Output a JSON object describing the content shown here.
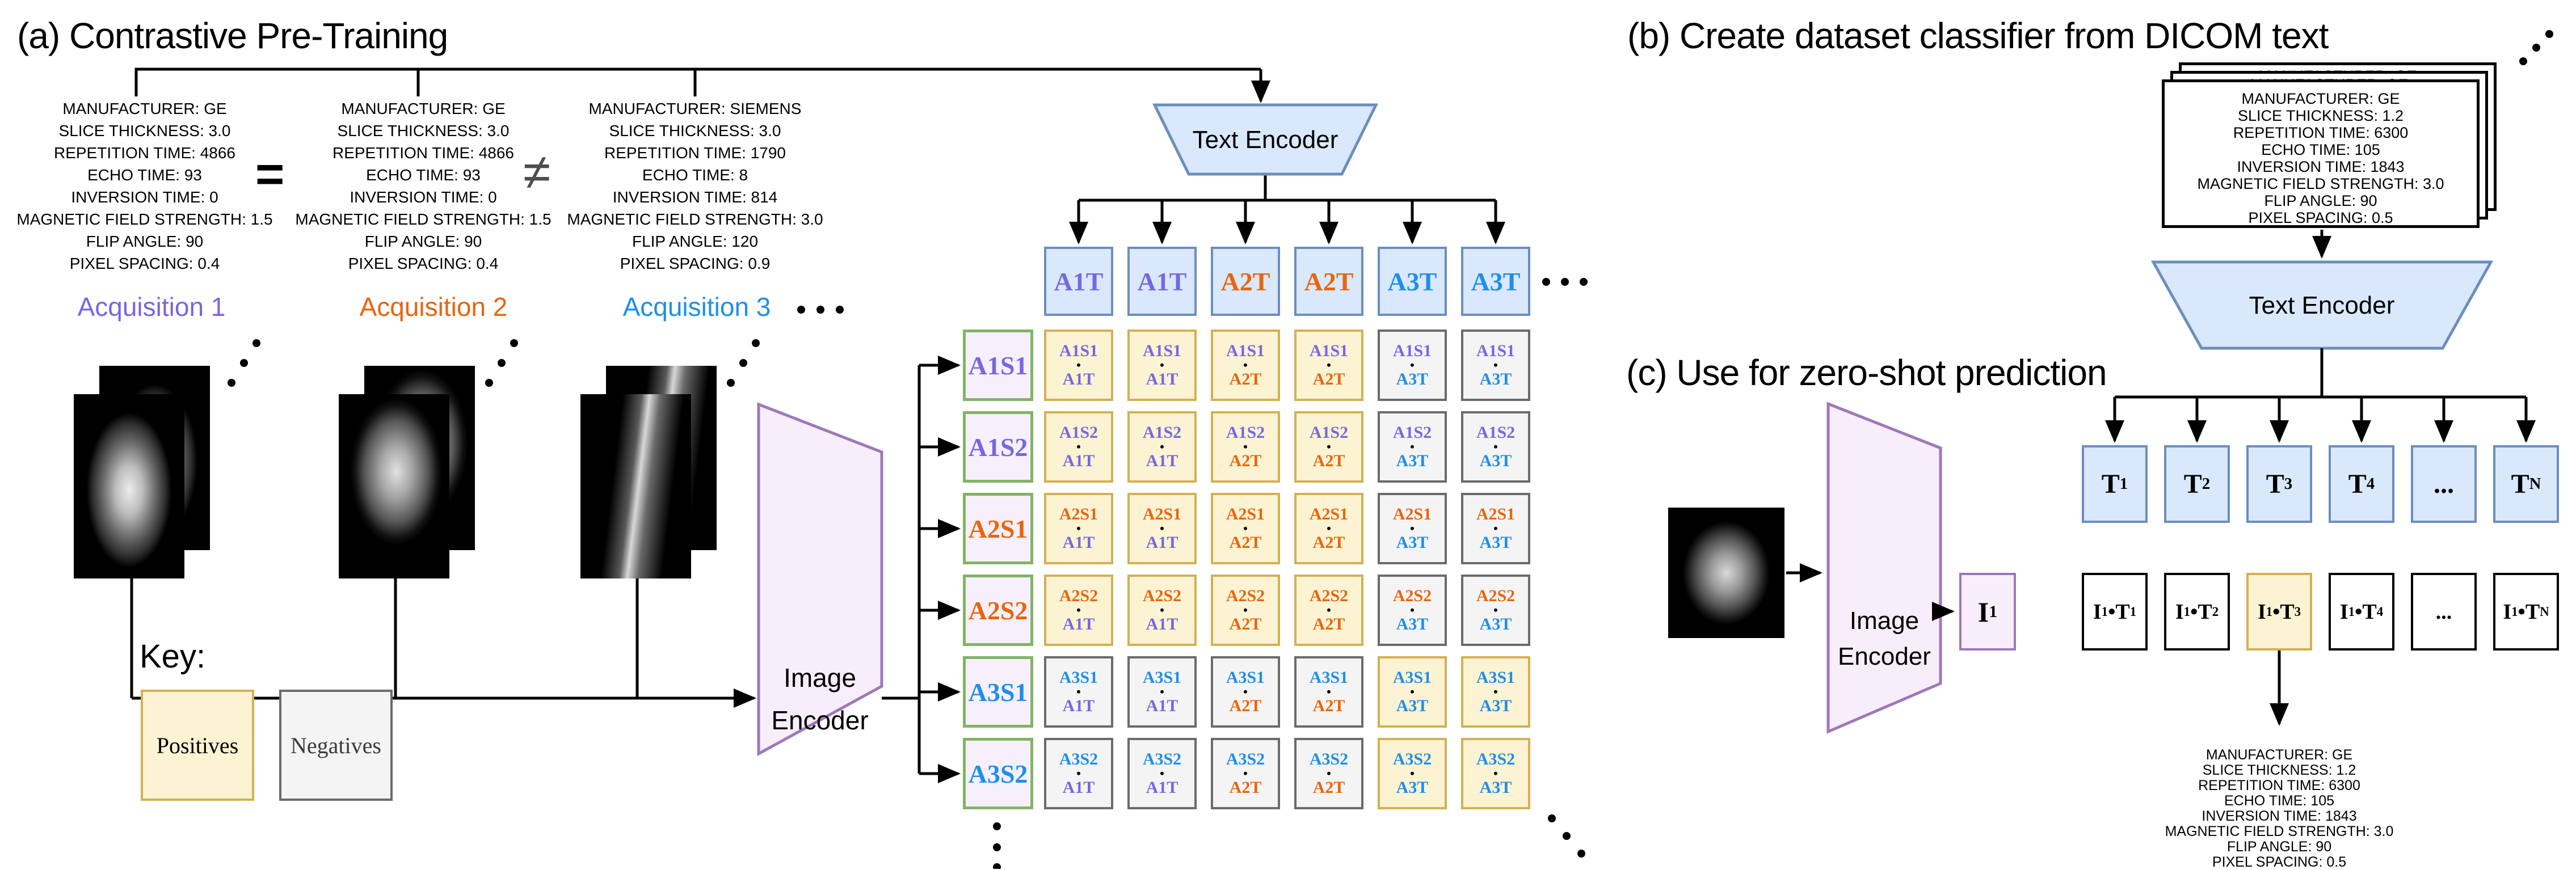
{
  "colors": {
    "acq1": "#7668E0",
    "acq2": "#E8650D",
    "acq3": "#1E8FE8",
    "blue_fill": "#DAE8FC",
    "blue_border": "#6C8EBF",
    "yellow_fill": "#FCF3D3",
    "yellow_border": "#D2B153",
    "gray_fill": "#F4F4F4",
    "gray_border": "#6B6B6B",
    "label_fill": "#F7EFFB",
    "label_border": "#82B366",
    "pink_fill": "#F8EDFB",
    "pink_border": "#9C79B8"
  },
  "panel_a": {
    "title": "(a) Contrastive Pre-Training",
    "equals": "=",
    "not_equals": "≠",
    "acquisitions": [
      {
        "label": "Acquisition 1",
        "acq": 1,
        "dicom": [
          "MANUFACTURER: GE",
          "SLICE THICKNESS: 3.0",
          "REPETITION TIME: 4866",
          "ECHO TIME: 93",
          "INVERSION TIME: 0",
          "MAGNETIC FIELD STRENGTH: 1.5",
          "FLIP ANGLE: 90",
          "PIXEL SPACING: 0.4"
        ]
      },
      {
        "label": "Acquisition 2",
        "acq": 2,
        "dicom": [
          "MANUFACTURER: GE",
          "SLICE THICKNESS: 3.0",
          "REPETITION TIME: 4866",
          "ECHO TIME: 93",
          "INVERSION TIME: 0",
          "MAGNETIC FIELD STRENGTH: 1.5",
          "FLIP ANGLE: 90",
          "PIXEL SPACING: 0.4"
        ]
      },
      {
        "label": "Acquisition 3",
        "acq": 3,
        "dicom": [
          "MANUFACTURER: SIEMENS",
          "SLICE THICKNESS: 3.0",
          "REPETITION TIME: 1790",
          "ECHO TIME: 8",
          "INVERSION TIME: 814",
          "MAGNETIC FIELD STRENGTH: 3.0",
          "FLIP ANGLE: 120",
          "PIXEL SPACING: 0.9"
        ]
      }
    ],
    "text_encoder": "Text Encoder",
    "image_encoder": [
      "Image",
      "Encoder"
    ],
    "key": {
      "heading": "Key:",
      "positives": "Positives",
      "negatives": "Negatives"
    },
    "matrix": {
      "dot": "•",
      "col_headers": [
        {
          "text": "A1T",
          "acq": 1
        },
        {
          "text": "A1T",
          "acq": 1
        },
        {
          "text": "A2T",
          "acq": 2
        },
        {
          "text": "A2T",
          "acq": 2
        },
        {
          "text": "A3T",
          "acq": 3
        },
        {
          "text": "A3T",
          "acq": 3
        }
      ],
      "rows": [
        {
          "label": "A1S1",
          "acq": 1,
          "positives": [
            1,
            1,
            1,
            1,
            0,
            0
          ]
        },
        {
          "label": "A1S2",
          "acq": 1,
          "positives": [
            1,
            1,
            1,
            1,
            0,
            0
          ]
        },
        {
          "label": "A2S1",
          "acq": 2,
          "positives": [
            1,
            1,
            1,
            1,
            0,
            0
          ]
        },
        {
          "label": "A2S2",
          "acq": 2,
          "positives": [
            1,
            1,
            1,
            1,
            0,
            0
          ]
        },
        {
          "label": "A3S1",
          "acq": 3,
          "positives": [
            0,
            0,
            0,
            0,
            1,
            1
          ]
        },
        {
          "label": "A3S2",
          "acq": 3,
          "positives": [
            0,
            0,
            0,
            0,
            1,
            1
          ]
        }
      ]
    }
  },
  "panel_b": {
    "title": "(b) Create dataset classifier from DICOM text",
    "dicom_page": [
      "MANUFACTURER: GE",
      "SLICE THICKNESS: 1.2",
      "REPETITION TIME: 6300",
      "ECHO TIME: 105",
      "INVERSION TIME: 1843",
      "MAGNETIC FIELD STRENGTH: 3.0",
      "FLIP ANGLE: 90",
      "PIXEL SPACING: 0.5"
    ],
    "text_encoder": "Text Encoder",
    "t_boxes": [
      {
        "base": "T",
        "sub": "1"
      },
      {
        "base": "T",
        "sub": "2"
      },
      {
        "base": "T",
        "sub": "3"
      },
      {
        "base": "T",
        "sub": "4"
      },
      {
        "base": "...",
        "sub": ""
      },
      {
        "base": "T",
        "sub": "N"
      }
    ]
  },
  "panel_c": {
    "title": "(c) Use for zero-shot prediction",
    "image_encoder": [
      "Image",
      "Encoder"
    ],
    "dot": "•",
    "i_box": {
      "base": "I",
      "sub": "1"
    },
    "products": [
      {
        "a": "I",
        "asub": "1",
        "b": "T",
        "bsub": "1",
        "highlight": false
      },
      {
        "a": "I",
        "asub": "1",
        "b": "T",
        "bsub": "2",
        "highlight": false
      },
      {
        "a": "I",
        "asub": "1",
        "b": "T",
        "bsub": "3",
        "highlight": true
      },
      {
        "a": "I",
        "asub": "1",
        "b": "T",
        "bsub": "4",
        "highlight": false
      },
      {
        "dots": "...",
        "highlight": false
      },
      {
        "a": "I",
        "asub": "1",
        "b": "T",
        "bsub": "N",
        "highlight": false
      }
    ],
    "prediction": [
      "MANUFACTURER: GE",
      "SLICE THICKNESS: 1.2",
      "REPETITION TIME: 6300",
      "ECHO TIME: 105",
      "INVERSION TIME: 1843",
      "MAGNETIC FIELD STRENGTH: 3.0",
      "FLIP ANGLE: 90",
      "PIXEL SPACING: 0.5"
    ]
  }
}
